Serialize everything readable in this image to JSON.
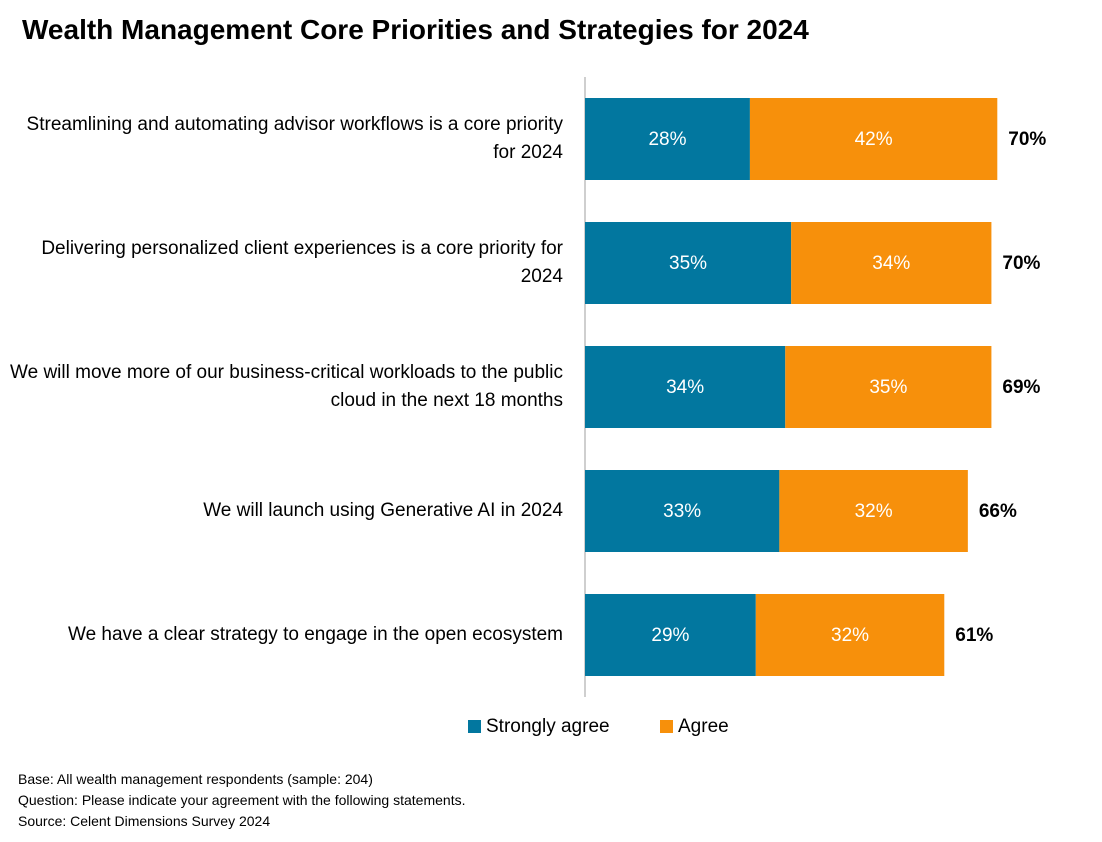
{
  "chart_data": {
    "type": "stacked-barh",
    "title": "Wealth Management Core Priorities and Strategies for 2024",
    "categories": [
      "Streamlining and automating advisor workflows is a core priority for 2024",
      "Delivering personalized client experiences is a core priority for 2024",
      "We will move more of our business-critical workloads to the public cloud in the next 18 months",
      "We will launch using Generative AI in 2024",
      "We have a clear strategy to engage in the open ecosystem"
    ],
    "series": [
      {
        "name": "Strongly agree",
        "color": "#02779f",
        "values": [
          28,
          35,
          34,
          33,
          29
        ],
        "value_labels": [
          "28%",
          "35%",
          "34%",
          "33%",
          "29%"
        ]
      },
      {
        "name": "Agree",
        "color": "#f7900b",
        "values": [
          42,
          34,
          35,
          32,
          32
        ],
        "value_labels": [
          "42%",
          "34%",
          "35%",
          "32%",
          "32%"
        ]
      }
    ],
    "totals": {
      "values": [
        70,
        70,
        69,
        66,
        61
      ],
      "value_labels": [
        "70%",
        "70%",
        "69%",
        "66%",
        "61%"
      ]
    },
    "xlim": [
      0,
      100
    ],
    "legend": "bottom",
    "notes": [
      "Base: All wealth management respondents (sample: 204)",
      "Question: Please indicate your agreement with the following statements.",
      "Source: Celent Dimensions Survey 2024"
    ]
  }
}
